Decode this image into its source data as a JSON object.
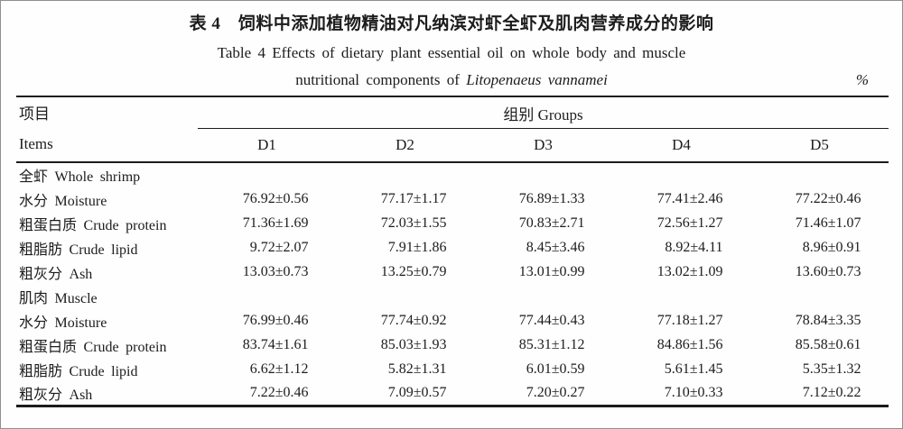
{
  "title": {
    "zh": "表 4　饲料中添加植物精油对凡纳滨对虾全虾及肌肉营养成分的影响",
    "en_line1": "Table 4   Effects of dietary plant essential oil on whole body and muscle",
    "en_line2_prefix": "nutritional components of ",
    "species": "Litopenaeus vannamei",
    "unit": "%"
  },
  "table": {
    "items_header_zh": "项目",
    "items_header_en": "Items",
    "groups_header": "组别 Groups",
    "group_columns": [
      "D1",
      "D2",
      "D3",
      "D4",
      "D5"
    ],
    "rows": [
      {
        "label": "全虾 Whole shrimp",
        "section": true,
        "values": [
          "",
          "",
          "",
          "",
          ""
        ]
      },
      {
        "label": "水分 Moisture",
        "values": [
          "76.92±0.56",
          "77.17±1.17",
          "76.89±1.33",
          "77.41±2.46",
          "77.22±0.46"
        ]
      },
      {
        "label": "粗蛋白质 Crude protein",
        "values": [
          "71.36±1.69",
          "72.03±1.55",
          "70.83±2.71",
          "72.56±1.27",
          "71.46±1.07"
        ]
      },
      {
        "label": "粗脂肪 Crude lipid",
        "values": [
          "9.72±2.07",
          "7.91±1.86",
          "8.45±3.46",
          "8.92±4.11",
          "8.96±0.91"
        ]
      },
      {
        "label": "粗灰分 Ash",
        "values": [
          "13.03±0.73",
          "13.25±0.79",
          "13.01±0.99",
          "13.02±1.09",
          "13.60±0.73"
        ]
      },
      {
        "label": "肌肉 Muscle",
        "section": true,
        "values": [
          "",
          "",
          "",
          "",
          ""
        ]
      },
      {
        "label": "水分 Moisture",
        "values": [
          "76.99±0.46",
          "77.74±0.92",
          "77.44±0.43",
          "77.18±1.27",
          "78.84±3.35"
        ]
      },
      {
        "label": "粗蛋白质 Crude protein",
        "values": [
          "83.74±1.61",
          "85.03±1.93",
          "85.31±1.12",
          "84.86±1.56",
          "85.58±0.61"
        ]
      },
      {
        "label": "粗脂肪 Crude lipid",
        "values": [
          "6.62±1.12",
          "5.82±1.31",
          "6.01±0.59",
          "5.61±1.45",
          "5.35±1.32"
        ]
      },
      {
        "label": "粗灰分 Ash",
        "values": [
          "7.22±0.46",
          "7.09±0.57",
          "7.20±0.27",
          "7.10±0.33",
          "7.12±0.22"
        ]
      }
    ]
  }
}
